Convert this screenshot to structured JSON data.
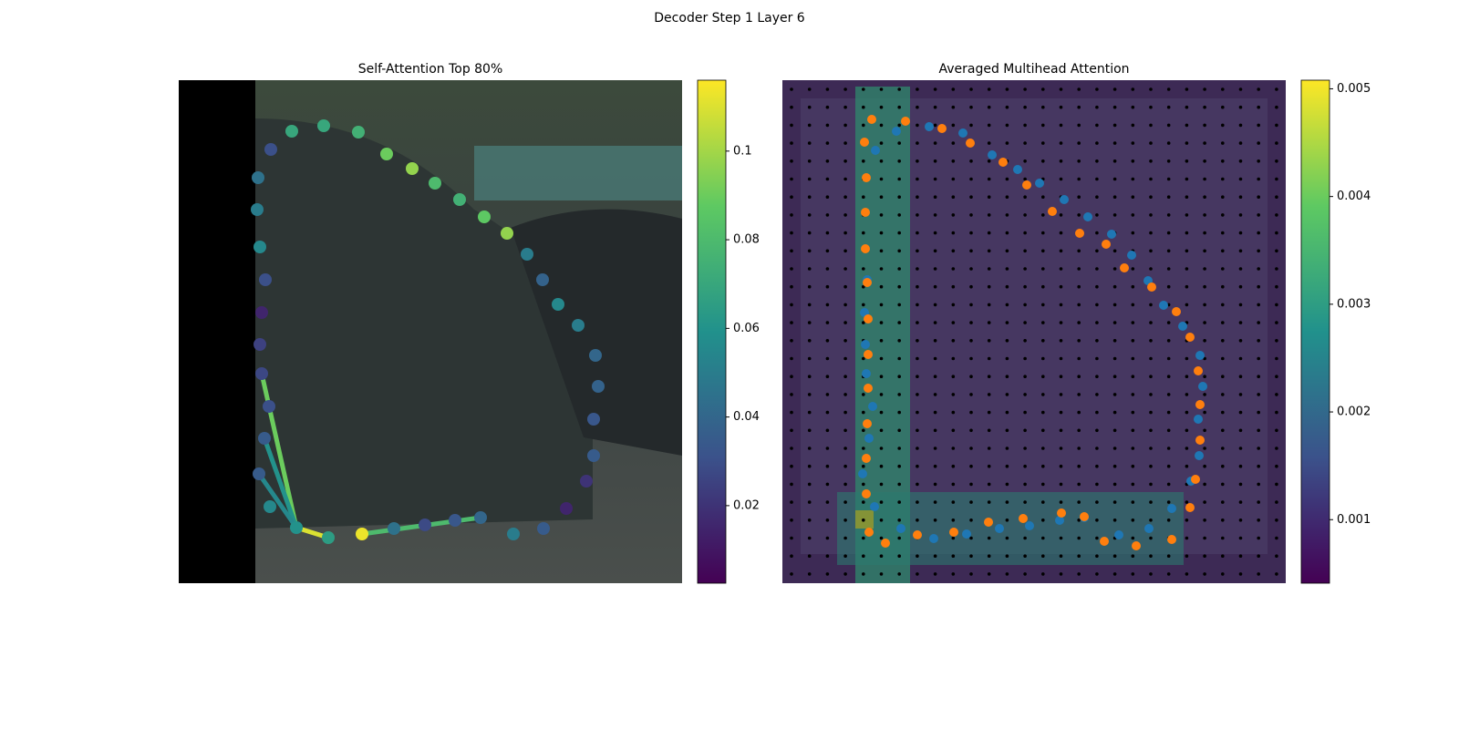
{
  "title": "Decoder Step 1 Layer 6",
  "chart_data": [
    {
      "type": "attention",
      "title": "Self-Attention Top 80%",
      "colormap": "viridis",
      "xlim": [
        0,
        552
      ],
      "ylim": [
        552,
        0
      ],
      "x": [
        124,
        159,
        197,
        228,
        256,
        281,
        308,
        335,
        360,
        382,
        399,
        416,
        438,
        457,
        460,
        455,
        455,
        447,
        425,
        400,
        367,
        331,
        303,
        270,
        236,
        201,
        164,
        129,
        100,
        88,
        94,
        99,
        91,
        89,
        91,
        95,
        89,
        86,
        87,
        101
      ],
      "y": [
        56,
        50,
        57,
        81,
        97,
        113,
        131,
        150,
        168,
        191,
        219,
        246,
        269,
        302,
        336,
        372,
        412,
        440,
        470,
        492,
        498,
        480,
        483,
        488,
        492,
        498,
        502,
        491,
        468,
        432,
        393,
        358,
        322,
        290,
        255,
        219,
        183,
        142,
        107,
        76
      ],
      "values": [
        0.07,
        0.07,
        0.075,
        0.09,
        0.097,
        0.08,
        0.075,
        0.087,
        0.097,
        0.05,
        0.038,
        0.055,
        0.05,
        0.04,
        0.038,
        0.033,
        0.035,
        0.02,
        0.015,
        0.035,
        0.05,
        0.04,
        0.033,
        0.028,
        0.045,
        0.113,
        0.065,
        0.06,
        0.055,
        0.035,
        0.035,
        0.03,
        0.027,
        0.025,
        0.015,
        0.03,
        0.055,
        0.05,
        0.045,
        0.03
      ],
      "links": [
        {
          "source": 27,
          "target": 32,
          "value": 0.09
        },
        {
          "source": 27,
          "target": 30,
          "value": 0.06
        },
        {
          "source": 27,
          "target": 29,
          "value": 0.055
        },
        {
          "source": 27,
          "target": 26,
          "value": 0.11
        },
        {
          "source": 25,
          "target": 21,
          "value": 0.08
        }
      ],
      "clim": [
        0.0025,
        0.116
      ],
      "cticks": [
        0.02,
        0.04,
        0.06,
        0.08,
        0.1
      ]
    },
    {
      "type": "scatter",
      "title": "Averaged Multihead Attention",
      "colormap": "viridis",
      "xlim": [
        0,
        552
      ],
      "ylim": [
        552,
        0
      ],
      "series": [
        {
          "color": "#1f77b4",
          "x": [
            102,
            125,
            161,
            198,
            230,
            258,
            282,
            309,
            335,
            361,
            383,
            401,
            418,
            439,
            458,
            461,
            456,
            457,
            448,
            427,
            402,
            369,
            331,
            304,
            271,
            238,
            202,
            166,
            130,
            101,
            88,
            95,
            99,
            92,
            91,
            90,
            93
          ],
          "y": [
            77,
            56,
            51,
            58,
            82,
            98,
            113,
            131,
            150,
            169,
            192,
            220,
            247,
            270,
            302,
            336,
            372,
            412,
            440,
            470,
            492,
            499,
            480,
            483,
            489,
            492,
            498,
            503,
            492,
            468,
            432,
            393,
            358,
            322,
            290,
            255,
            219
          ]
        },
        {
          "color": "#ff7f0e",
          "x": [
            98,
            135,
            175,
            206,
            242,
            268,
            296,
            326,
            355,
            375,
            405,
            432,
            447,
            456,
            458,
            458,
            453,
            447,
            427,
            388,
            353,
            331,
            306,
            264,
            226,
            188,
            148,
            113,
            95,
            92,
            92,
            93,
            94,
            94,
            94,
            93,
            91,
            91,
            92,
            90
          ],
          "y": [
            43,
            45,
            53,
            69,
            90,
            115,
            144,
            168,
            180,
            206,
            227,
            254,
            282,
            319,
            356,
            395,
            438,
            469,
            504,
            511,
            506,
            479,
            475,
            481,
            485,
            496,
            499,
            508,
            496,
            454,
            415,
            377,
            338,
            301,
            262,
            222,
            185,
            145,
            107,
            68
          ]
        }
      ],
      "clim": [
        0.00041,
        0.00508
      ],
      "cticks": [
        0.001,
        0.002,
        0.003,
        0.004,
        0.005
      ]
    }
  ]
}
